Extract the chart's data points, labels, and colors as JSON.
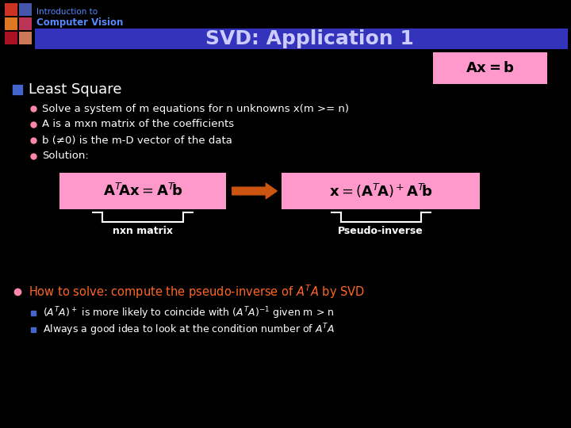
{
  "bg_color": "#000000",
  "header_bar_color": "#3333bb",
  "header_title": "SVD: Application 1",
  "header_title_color": "#ccccff",
  "header_sub1": "Introduction to",
  "header_sub2": "Computer Vision",
  "header_sub_color": "#5588ff",
  "logo_colors": [
    [
      "#cc3322",
      "#4455aa"
    ],
    [
      "#dd7722",
      "#bb3355"
    ],
    [
      "#aa1122",
      "#cc7755"
    ]
  ],
  "bullet_color": "#4466cc",
  "text_color": "#ffffff",
  "pink_box_color": "#ff99cc",
  "arrow_color": "#cc5511",
  "section1": "Least Square",
  "bullets": [
    "Solve a system of m equations for n unknowns x(m >= n)",
    "A is a mxn matrix of the coefficients",
    "b (≠0) is the m-D vector of the data",
    "Solution:"
  ],
  "label1": "nxn matrix",
  "label2": "Pseudo-inverse",
  "bullet3_color": "#ff6622",
  "sub_text_color": "#ffffff"
}
